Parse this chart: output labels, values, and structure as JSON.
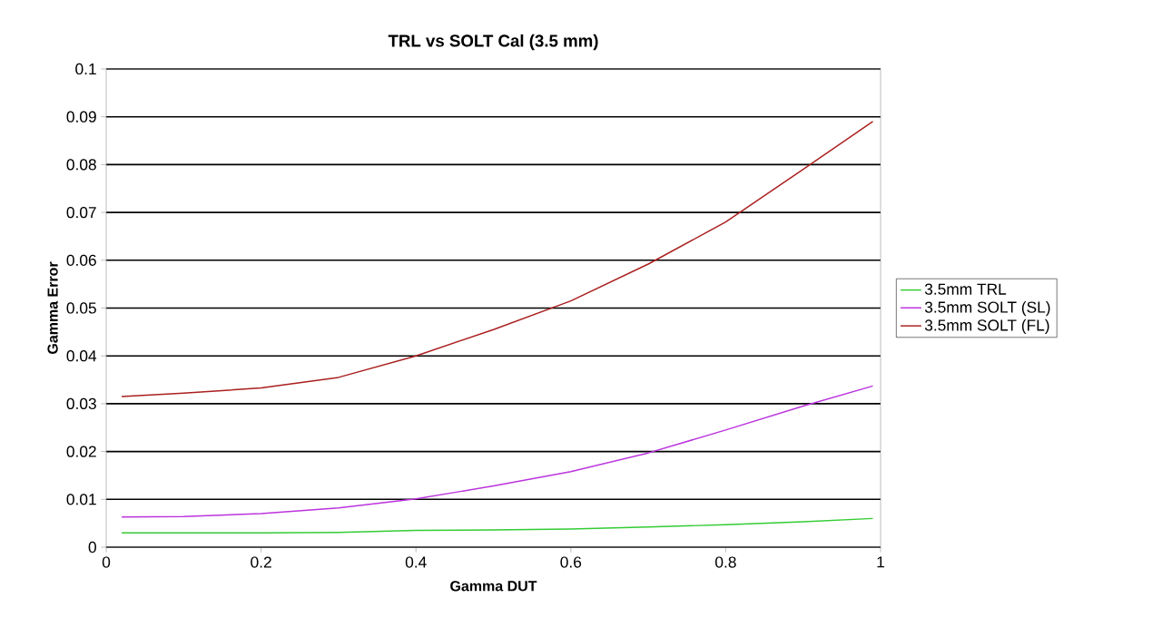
{
  "chart_data": {
    "type": "line",
    "title": "TRL vs SOLT Cal  (3.5 mm)",
    "xlabel": "Gamma DUT",
    "ylabel": "Gamma Error",
    "x": [
      0.02,
      0.1,
      0.2,
      0.3,
      0.4,
      0.5,
      0.6,
      0.7,
      0.8,
      0.9,
      0.99
    ],
    "series": [
      {
        "name": "3.5mm TRL",
        "color": "#33cc33",
        "values": [
          0.003,
          0.003,
          0.003,
          0.0031,
          0.0035,
          0.0036,
          0.0038,
          0.0042,
          0.0047,
          0.0053,
          0.006
        ]
      },
      {
        "name": "3.5mm SOLT (SL)",
        "color": "#bb33dd",
        "values": [
          0.0063,
          0.0064,
          0.007,
          0.0082,
          0.0101,
          0.0128,
          0.0158,
          0.0197,
          0.0245,
          0.0295,
          0.0337
        ]
      },
      {
        "name": "3.5mm SOLT (FL)",
        "color": "#aa1f1f",
        "values": [
          0.0315,
          0.0322,
          0.0333,
          0.0355,
          0.04,
          0.0455,
          0.0515,
          0.0592,
          0.068,
          0.079,
          0.089
        ]
      }
    ],
    "xlim": [
      0,
      1
    ],
    "ylim": [
      0,
      0.1
    ],
    "xticks": [
      0,
      0.2,
      0.4,
      0.6,
      0.8,
      1
    ],
    "yticks": [
      0,
      0.01,
      0.02,
      0.03,
      0.04,
      0.05,
      0.06,
      0.07,
      0.08,
      0.09,
      0.1
    ],
    "grid": "y",
    "legend": "right",
    "marker": "none",
    "line_style": "solid"
  }
}
